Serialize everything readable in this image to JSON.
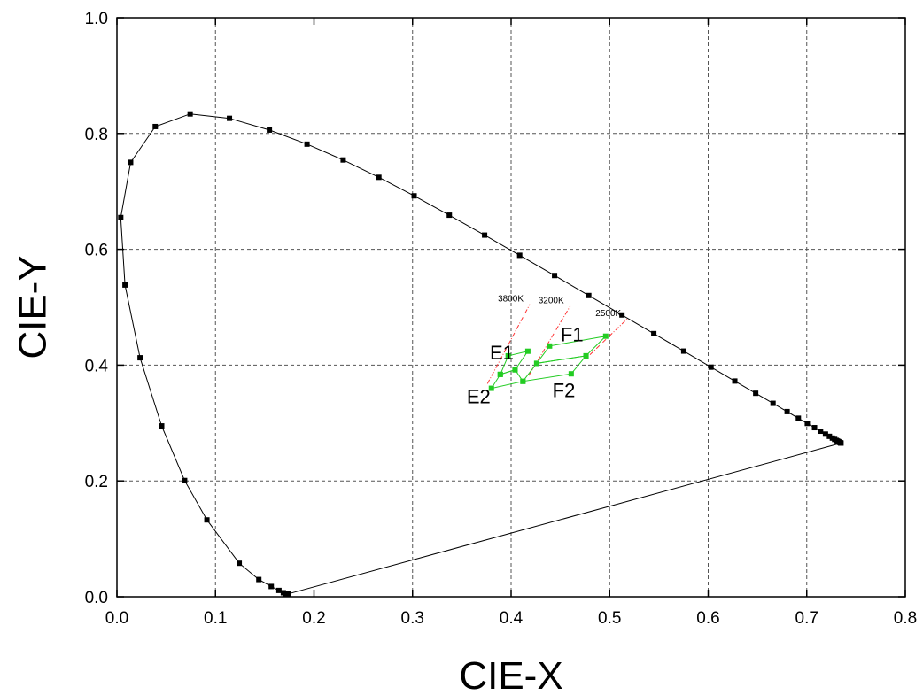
{
  "chart_data": {
    "type": "scatter",
    "title": "",
    "xlabel": "CIE-X",
    "ylabel": "CIE-Y",
    "xlim": [
      0.0,
      0.8
    ],
    "ylim": [
      0.0,
      1.0
    ],
    "x_ticks": [
      "0.0",
      "0.1",
      "0.2",
      "0.3",
      "0.4",
      "0.5",
      "0.6",
      "0.7",
      "0.8"
    ],
    "y_ticks": [
      "0.0",
      "0.2",
      "0.4",
      "0.6",
      "0.8",
      "1.0"
    ],
    "grid": true,
    "colors": {
      "locus": "#000000",
      "region": "#22cc22",
      "cct_line": "#ff3333"
    },
    "spectrum_locus": {
      "x": [
        0.1741,
        0.1738,
        0.1733,
        0.1726,
        0.1714,
        0.1689,
        0.1644,
        0.1566,
        0.144,
        0.1241,
        0.0913,
        0.0687,
        0.0454,
        0.0235,
        0.0082,
        0.0039,
        0.0139,
        0.0389,
        0.0743,
        0.1142,
        0.1547,
        0.1929,
        0.2296,
        0.2658,
        0.3016,
        0.3373,
        0.3731,
        0.4087,
        0.4441,
        0.4788,
        0.5125,
        0.5448,
        0.5752,
        0.6029,
        0.627,
        0.6482,
        0.6658,
        0.6801,
        0.6915,
        0.7006,
        0.7079,
        0.714,
        0.719,
        0.723,
        0.726,
        0.7283,
        0.73,
        0.7311,
        0.732,
        0.7327,
        0.7334,
        0.734,
        0.7344,
        0.7346,
        0.7347
      ],
      "y": [
        0.005,
        0.0049,
        0.0048,
        0.0048,
        0.0051,
        0.0069,
        0.0109,
        0.0177,
        0.0297,
        0.0578,
        0.1327,
        0.2007,
        0.295,
        0.4127,
        0.5384,
        0.6548,
        0.7502,
        0.812,
        0.8338,
        0.8262,
        0.8059,
        0.7816,
        0.7543,
        0.7243,
        0.6923,
        0.6589,
        0.6245,
        0.5896,
        0.5547,
        0.5202,
        0.4866,
        0.4544,
        0.4242,
        0.3965,
        0.3725,
        0.3514,
        0.334,
        0.3197,
        0.3083,
        0.2993,
        0.292,
        0.2859,
        0.2809,
        0.277,
        0.274,
        0.2717,
        0.27,
        0.2689,
        0.268,
        0.2673,
        0.2666,
        0.266,
        0.2656,
        0.2654,
        0.2653
      ]
    },
    "regions": [
      {
        "name": "E1",
        "x": [
          0.389,
          0.397,
          0.417,
          0.404
        ],
        "y": [
          0.384,
          0.416,
          0.424,
          0.392
        ]
      },
      {
        "name": "E2",
        "x": [
          0.38,
          0.389,
          0.404,
          0.412
        ],
        "y": [
          0.36,
          0.384,
          0.392,
          0.372
        ]
      },
      {
        "name": "F1",
        "x": [
          0.426,
          0.439,
          0.496,
          0.476
        ],
        "y": [
          0.403,
          0.433,
          0.45,
          0.416
        ]
      },
      {
        "name": "F2",
        "x": [
          0.412,
          0.426,
          0.476,
          0.461
        ],
        "y": [
          0.372,
          0.403,
          0.416,
          0.385
        ]
      }
    ],
    "cct_lines": [
      {
        "label": "3800K",
        "x": [
          0.376,
          0.419
        ],
        "y": [
          0.368,
          0.505
        ]
      },
      {
        "label": "3200K",
        "x": [
          0.418,
          0.46
        ],
        "y": [
          0.382,
          0.502
        ]
      },
      {
        "label": "2500K",
        "x": [
          0.48,
          0.518
        ],
        "y": [
          0.418,
          0.48
        ]
      }
    ]
  }
}
